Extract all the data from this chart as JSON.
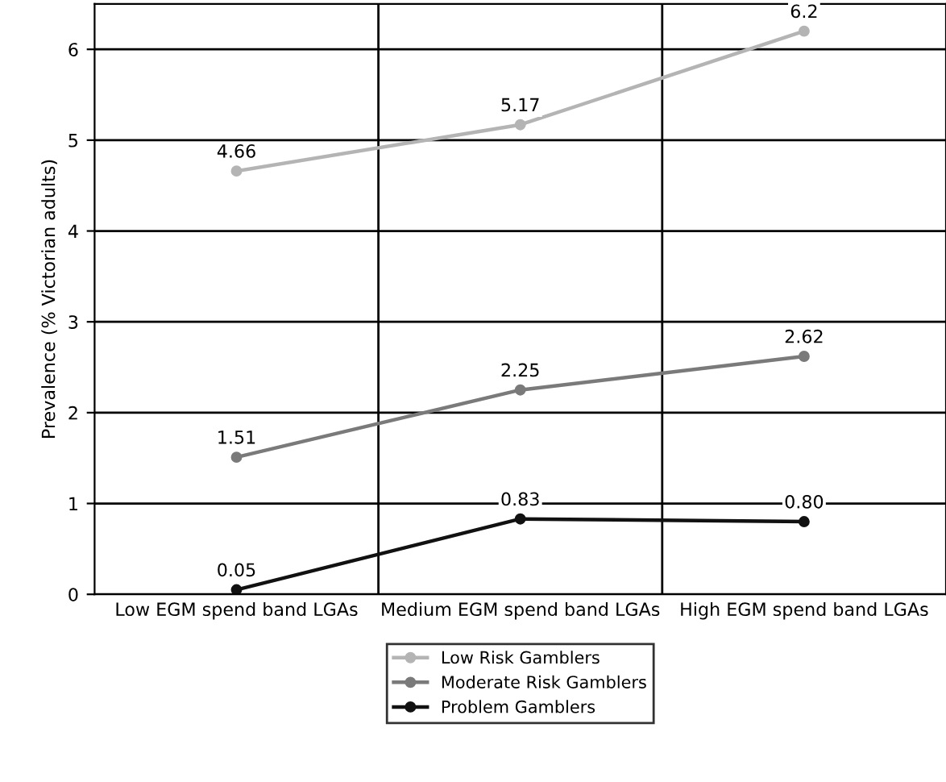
{
  "chart_data": {
    "type": "line",
    "ylabel": "Prevalence (% Victorian adults)",
    "categories": [
      "Low EGM spend band LGAs",
      "Medium EGM spend band LGAs",
      "High EGM spend band LGAs"
    ],
    "series": [
      {
        "name": "Low Risk Gamblers",
        "color": "#b4b4b4",
        "values": [
          4.66,
          5.17,
          6.2
        ],
        "value_labels": [
          "4.66",
          "5.17",
          "6.2"
        ]
      },
      {
        "name": "Moderate Risk Gamblers",
        "color": "#7a7a7a",
        "values": [
          1.51,
          2.25,
          2.62
        ],
        "value_labels": [
          "1.51",
          "2.25",
          "2.62"
        ]
      },
      {
        "name": "Problem Gamblers",
        "color": "#111111",
        "values": [
          0.05,
          0.83,
          0.8
        ],
        "value_labels": [
          "0.05",
          "0.83",
          "0.80"
        ]
      }
    ],
    "ylim": [
      0,
      6.5
    ],
    "yticks": [
      0,
      1,
      2,
      3,
      4,
      5,
      6
    ],
    "grid": true,
    "legend": "bottom",
    "marker": "circle"
  }
}
